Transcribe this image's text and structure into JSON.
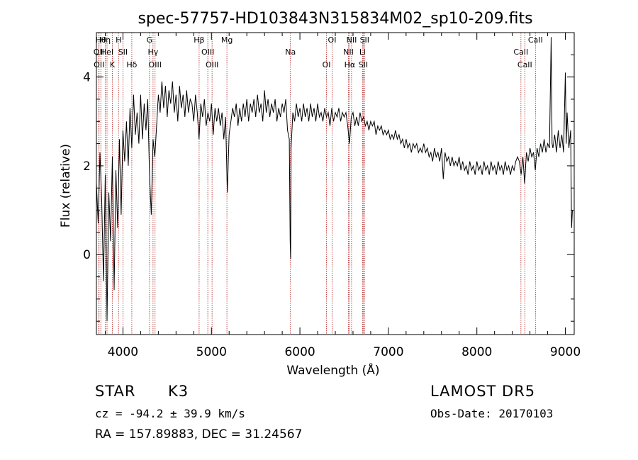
{
  "chart_data": {
    "type": "line",
    "title": "spec-57757-HD103843N315834M02_sp10-209.fits",
    "xlabel": "Wavelength (Å)",
    "ylabel": "Flux (relative)",
    "xlim": [
      3700,
      9100
    ],
    "ylim": [
      -1.8,
      5.0
    ],
    "x_ticks": [
      4000,
      5000,
      6000,
      7000,
      8000,
      9000
    ],
    "y_ticks": [
      0,
      2,
      4
    ],
    "grid": false,
    "series": [
      {
        "points": [
          [
            3700,
            1.6
          ],
          [
            3720,
            0.7
          ],
          [
            3740,
            2.3
          ],
          [
            3760,
            1.2
          ],
          [
            3780,
            -0.6
          ],
          [
            3800,
            1.8
          ],
          [
            3820,
            -1.5
          ],
          [
            3840,
            1.4
          ],
          [
            3860,
            0.3
          ],
          [
            3880,
            2.2
          ],
          [
            3900,
            -0.8
          ],
          [
            3920,
            1.9
          ],
          [
            3940,
            0.6
          ],
          [
            3960,
            2.6
          ],
          [
            3980,
            0.9
          ],
          [
            4000,
            2.8
          ],
          [
            4020,
            2.1
          ],
          [
            4040,
            3.0
          ],
          [
            4060,
            2.0
          ],
          [
            4080,
            3.3
          ],
          [
            4100,
            2.4
          ],
          [
            4120,
            3.6
          ],
          [
            4140,
            2.7
          ],
          [
            4160,
            3.2
          ],
          [
            4180,
            2.5
          ],
          [
            4200,
            3.6
          ],
          [
            4220,
            2.6
          ],
          [
            4240,
            3.4
          ],
          [
            4260,
            2.8
          ],
          [
            4280,
            3.5
          ],
          [
            4300,
            1.8
          ],
          [
            4320,
            0.9
          ],
          [
            4340,
            2.6
          ],
          [
            4360,
            2.2
          ],
          [
            4380,
            2.9
          ],
          [
            4400,
            3.6
          ],
          [
            4420,
            3.2
          ],
          [
            4440,
            3.9
          ],
          [
            4460,
            3.3
          ],
          [
            4480,
            3.8
          ],
          [
            4500,
            3.1
          ],
          [
            4520,
            3.7
          ],
          [
            4540,
            3.4
          ],
          [
            4560,
            3.9
          ],
          [
            4580,
            3.2
          ],
          [
            4600,
            3.6
          ],
          [
            4620,
            3.0
          ],
          [
            4640,
            3.8
          ],
          [
            4660,
            3.3
          ],
          [
            4680,
            3.6
          ],
          [
            4700,
            3.1
          ],
          [
            4720,
            3.7
          ],
          [
            4740,
            3.2
          ],
          [
            4760,
            3.5
          ],
          [
            4780,
            3.4
          ],
          [
            4800,
            3.0
          ],
          [
            4820,
            3.6
          ],
          [
            4840,
            3.2
          ],
          [
            4860,
            2.6
          ],
          [
            4880,
            3.4
          ],
          [
            4900,
            3.1
          ],
          [
            4920,
            3.5
          ],
          [
            4940,
            2.9
          ],
          [
            4960,
            3.2
          ],
          [
            4980,
            3.0
          ],
          [
            5000,
            3.4
          ],
          [
            5020,
            2.7
          ],
          [
            5040,
            3.3
          ],
          [
            5060,
            3.0
          ],
          [
            5080,
            3.3
          ],
          [
            5100,
            2.9
          ],
          [
            5120,
            3.2
          ],
          [
            5140,
            2.6
          ],
          [
            5160,
            3.1
          ],
          [
            5180,
            1.4
          ],
          [
            5200,
            2.7
          ],
          [
            5220,
            3.0
          ],
          [
            5240,
            3.3
          ],
          [
            5260,
            3.1
          ],
          [
            5280,
            3.4
          ],
          [
            5300,
            2.9
          ],
          [
            5320,
            3.3
          ],
          [
            5340,
            3.0
          ],
          [
            5360,
            3.4
          ],
          [
            5380,
            3.1
          ],
          [
            5400,
            3.5
          ],
          [
            5420,
            3.0
          ],
          [
            5440,
            3.4
          ],
          [
            5460,
            3.2
          ],
          [
            5480,
            3.5
          ],
          [
            5500,
            3.1
          ],
          [
            5520,
            3.6
          ],
          [
            5540,
            3.2
          ],
          [
            5560,
            3.4
          ],
          [
            5580,
            3.0
          ],
          [
            5600,
            3.7
          ],
          [
            5620,
            3.2
          ],
          [
            5640,
            3.5
          ],
          [
            5660,
            3.1
          ],
          [
            5680,
            3.4
          ],
          [
            5700,
            3.2
          ],
          [
            5720,
            3.5
          ],
          [
            5740,
            3.0
          ],
          [
            5760,
            3.3
          ],
          [
            5780,
            3.1
          ],
          [
            5800,
            3.4
          ],
          [
            5820,
            3.2
          ],
          [
            5840,
            3.5
          ],
          [
            5860,
            2.8
          ],
          [
            5880,
            2.6
          ],
          [
            5890,
            0.3
          ],
          [
            5895,
            -0.1
          ],
          [
            5900,
            2.4
          ],
          [
            5920,
            3.2
          ],
          [
            5940,
            3.0
          ],
          [
            5960,
            3.4
          ],
          [
            5980,
            3.1
          ],
          [
            6000,
            3.3
          ],
          [
            6020,
            3.0
          ],
          [
            6040,
            3.4
          ],
          [
            6060,
            3.1
          ],
          [
            6080,
            3.3
          ],
          [
            6100,
            3.0
          ],
          [
            6120,
            3.4
          ],
          [
            6140,
            3.1
          ],
          [
            6160,
            3.3
          ],
          [
            6180,
            3.0
          ],
          [
            6200,
            3.4
          ],
          [
            6220,
            3.1
          ],
          [
            6240,
            3.2
          ],
          [
            6260,
            3.0
          ],
          [
            6280,
            3.3
          ],
          [
            6300,
            3.1
          ],
          [
            6320,
            3.2
          ],
          [
            6340,
            2.9
          ],
          [
            6360,
            3.3
          ],
          [
            6380,
            3.0
          ],
          [
            6400,
            3.2
          ],
          [
            6420,
            3.1
          ],
          [
            6440,
            3.3
          ],
          [
            6460,
            3.0
          ],
          [
            6480,
            3.2
          ],
          [
            6500,
            3.1
          ],
          [
            6520,
            3.2
          ],
          [
            6540,
            2.9
          ],
          [
            6560,
            2.5
          ],
          [
            6580,
            3.1
          ],
          [
            6600,
            3.2
          ],
          [
            6620,
            2.9
          ],
          [
            6640,
            3.1
          ],
          [
            6660,
            2.9
          ],
          [
            6680,
            3.2
          ],
          [
            6700,
            3.0
          ],
          [
            6720,
            3.1
          ],
          [
            6740,
            2.9
          ],
          [
            6760,
            3.0
          ],
          [
            6780,
            2.8
          ],
          [
            6800,
            3.0
          ],
          [
            6820,
            2.9
          ],
          [
            6840,
            3.0
          ],
          [
            6860,
            2.7
          ],
          [
            6880,
            2.9
          ],
          [
            6900,
            2.8
          ],
          [
            6920,
            2.9
          ],
          [
            6940,
            2.7
          ],
          [
            6960,
            2.8
          ],
          [
            6980,
            2.7
          ],
          [
            7000,
            2.8
          ],
          [
            7020,
            2.6
          ],
          [
            7040,
            2.7
          ],
          [
            7060,
            2.6
          ],
          [
            7080,
            2.8
          ],
          [
            7100,
            2.6
          ],
          [
            7120,
            2.7
          ],
          [
            7140,
            2.5
          ],
          [
            7160,
            2.6
          ],
          [
            7180,
            2.4
          ],
          [
            7200,
            2.6
          ],
          [
            7220,
            2.4
          ],
          [
            7240,
            2.5
          ],
          [
            7260,
            2.3
          ],
          [
            7280,
            2.5
          ],
          [
            7300,
            2.4
          ],
          [
            7320,
            2.5
          ],
          [
            7340,
            2.3
          ],
          [
            7360,
            2.4
          ],
          [
            7380,
            2.3
          ],
          [
            7400,
            2.5
          ],
          [
            7420,
            2.3
          ],
          [
            7440,
            2.4
          ],
          [
            7460,
            2.2
          ],
          [
            7480,
            2.3
          ],
          [
            7500,
            2.1
          ],
          [
            7520,
            2.4
          ],
          [
            7540,
            2.2
          ],
          [
            7560,
            2.3
          ],
          [
            7580,
            2.1
          ],
          [
            7600,
            2.4
          ],
          [
            7620,
            1.7
          ],
          [
            7640,
            2.3
          ],
          [
            7660,
            2.1
          ],
          [
            7680,
            2.2
          ],
          [
            7700,
            2.0
          ],
          [
            7720,
            2.2
          ],
          [
            7740,
            2.0
          ],
          [
            7760,
            2.1
          ],
          [
            7780,
            2.0
          ],
          [
            7800,
            2.2
          ],
          [
            7820,
            1.9
          ],
          [
            7840,
            2.1
          ],
          [
            7860,
            1.9
          ],
          [
            7880,
            2.0
          ],
          [
            7900,
            1.8
          ],
          [
            7920,
            2.1
          ],
          [
            7940,
            1.9
          ],
          [
            7960,
            2.0
          ],
          [
            7980,
            1.8
          ],
          [
            8000,
            2.1
          ],
          [
            8020,
            1.9
          ],
          [
            8040,
            2.0
          ],
          [
            8060,
            1.8
          ],
          [
            8080,
            2.1
          ],
          [
            8100,
            1.9
          ],
          [
            8120,
            2.0
          ],
          [
            8140,
            1.8
          ],
          [
            8160,
            2.1
          ],
          [
            8180,
            1.9
          ],
          [
            8200,
            2.0
          ],
          [
            8220,
            1.8
          ],
          [
            8240,
            2.1
          ],
          [
            8260,
            1.9
          ],
          [
            8280,
            2.0
          ],
          [
            8300,
            1.8
          ],
          [
            8320,
            2.1
          ],
          [
            8340,
            1.9
          ],
          [
            8360,
            2.0
          ],
          [
            8380,
            1.8
          ],
          [
            8400,
            2.0
          ],
          [
            8420,
            1.9
          ],
          [
            8440,
            2.1
          ],
          [
            8460,
            2.2
          ],
          [
            8480,
            2.1
          ],
          [
            8500,
            1.8
          ],
          [
            8520,
            2.2
          ],
          [
            8540,
            1.6
          ],
          [
            8560,
            2.3
          ],
          [
            8580,
            2.1
          ],
          [
            8600,
            2.4
          ],
          [
            8620,
            2.2
          ],
          [
            8640,
            2.3
          ],
          [
            8660,
            1.9
          ],
          [
            8680,
            2.4
          ],
          [
            8700,
            2.2
          ],
          [
            8720,
            2.5
          ],
          [
            8740,
            2.3
          ],
          [
            8760,
            2.6
          ],
          [
            8780,
            2.3
          ],
          [
            8800,
            2.5
          ],
          [
            8820,
            2.4
          ],
          [
            8840,
            4.9
          ],
          [
            8850,
            2.5
          ],
          [
            8860,
            2.4
          ],
          [
            8880,
            2.7
          ],
          [
            8900,
            2.3
          ],
          [
            8920,
            2.8
          ],
          [
            8940,
            2.4
          ],
          [
            8960,
            2.7
          ],
          [
            8980,
            2.3
          ],
          [
            9000,
            4.1
          ],
          [
            9010,
            2.5
          ],
          [
            9020,
            3.2
          ],
          [
            9040,
            2.4
          ],
          [
            9060,
            2.8
          ],
          [
            9070,
            0.6
          ],
          [
            9080,
            1.0
          ]
        ]
      }
    ],
    "lines": [
      {
        "x": 3750,
        "label": "Hθ"
      },
      {
        "x": 3727,
        "label": "OII"
      },
      {
        "x": 3730,
        "label": "OII"
      },
      {
        "x": 3800,
        "label": "Hη"
      },
      {
        "x": 3820,
        "label": "HeI"
      },
      {
        "x": 3880,
        "label": "K"
      },
      {
        "x": 3950,
        "label": "H"
      },
      {
        "x": 4000,
        "label": "SII"
      },
      {
        "x": 4100,
        "label": "Hδ"
      },
      {
        "x": 4300,
        "label": "G"
      },
      {
        "x": 4340,
        "label": "Hγ"
      },
      {
        "x": 4363,
        "label": "OIII"
      },
      {
        "x": 4861,
        "label": "Hβ"
      },
      {
        "x": 4959,
        "label": "OIII"
      },
      {
        "x": 5007,
        "label": "OIII"
      },
      {
        "x": 5175,
        "label": "Mg"
      },
      {
        "x": 5893,
        "label": "Na"
      },
      {
        "x": 6300,
        "label": "OI"
      },
      {
        "x": 6364,
        "label": "OI"
      },
      {
        "x": 6548,
        "label": "NII"
      },
      {
        "x": 6563,
        "label": "Hα"
      },
      {
        "x": 6584,
        "label": "NII"
      },
      {
        "x": 6708,
        "label": "Li"
      },
      {
        "x": 6716,
        "label": "SII"
      },
      {
        "x": 6731,
        "label": "SII"
      },
      {
        "x": 8498,
        "label": "CaII"
      },
      {
        "x": 8542,
        "label": "CaII"
      },
      {
        "x": 8662,
        "label": "CaII"
      }
    ],
    "line_color": "#b22222",
    "series_color": "#000000"
  },
  "info": {
    "obj_class": "STAR",
    "subclass": "K3",
    "survey": "LAMOST DR5",
    "cz": "cz = -94.2 ± 39.9 km/s",
    "obs_date": "Obs-Date: 20170103",
    "coords": "RA = 157.89883, DEC =  31.24567"
  }
}
